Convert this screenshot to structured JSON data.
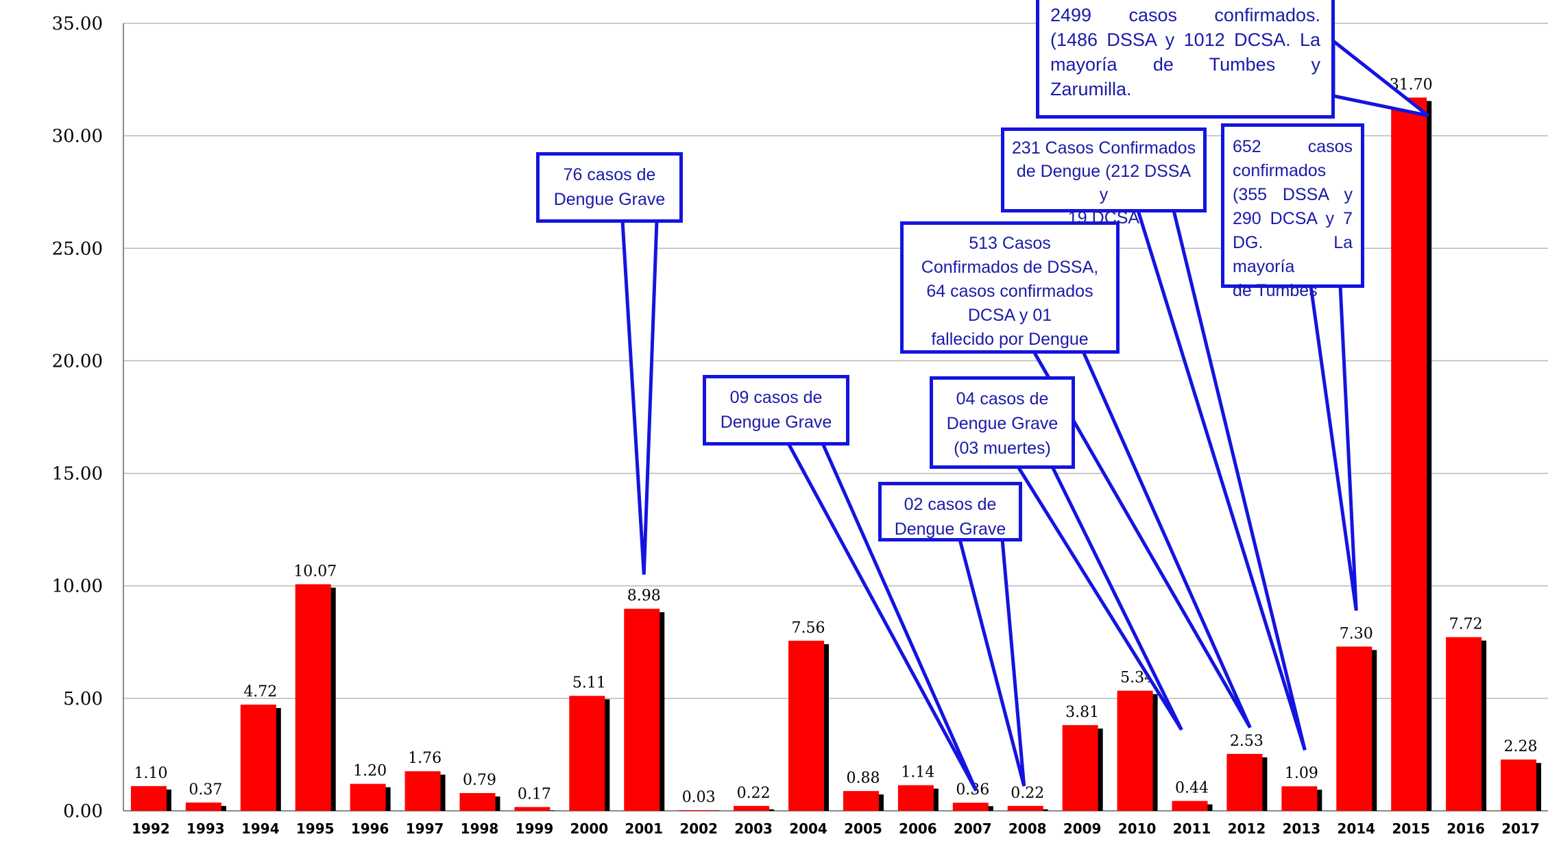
{
  "chart_data": {
    "type": "bar",
    "title": "",
    "xlabel": "",
    "ylabel": "",
    "ylim": [
      0,
      35
    ],
    "yticks": [
      "0.00",
      "5.00",
      "10.00",
      "15.00",
      "20.00",
      "25.00",
      "30.00",
      "35.00"
    ],
    "grid": true,
    "bar_color": "#ff0000",
    "shadow_color": "#000000",
    "callout_color": "#1a1aa8",
    "categories": [
      "1992",
      "1993",
      "1994",
      "1995",
      "1996",
      "1997",
      "1998",
      "1999",
      "2000",
      "2001",
      "2002",
      "2003",
      "2004",
      "2005",
      "2006",
      "2007",
      "2008",
      "2009",
      "2010",
      "2011",
      "2012",
      "2013",
      "2014",
      "2015",
      "2016",
      "2017"
    ],
    "values": [
      1.1,
      0.37,
      4.72,
      10.07,
      1.2,
      1.76,
      0.79,
      0.17,
      5.11,
      8.98,
      0.03,
      0.22,
      7.56,
      0.88,
      1.14,
      0.36,
      0.22,
      3.81,
      5.34,
      0.44,
      2.53,
      1.09,
      7.3,
      31.7,
      7.72,
      2.28
    ],
    "data_labels": [
      "1.10",
      "0.37",
      "4.72",
      "10.07",
      "1.20",
      "1.76",
      "0.79",
      "0.17",
      "5.11",
      "8.98",
      "0.03",
      "0.22",
      "7.56",
      "0.88",
      "1.14",
      "0.36",
      "0.22",
      "3.81",
      "5.34",
      "0.44",
      "2.53",
      "1.09",
      "7.30",
      "31.70",
      "7.72",
      "2.28"
    ],
    "annotations": [
      {
        "year": "2001",
        "lines": [
          "76 casos de",
          "Dengue Grave"
        ]
      },
      {
        "year": "2007",
        "lines": [
          "09 casos de",
          "Dengue Grave"
        ]
      },
      {
        "year": "2008",
        "lines": [
          "02 casos de",
          "Dengue Grave"
        ]
      },
      {
        "year": "2011",
        "lines": [
          "04 casos de",
          "Dengue Grave",
          "(03 muertes)"
        ]
      },
      {
        "year": "2012",
        "lines": [
          "513 Casos",
          "Confirmados de DSSA,",
          "64 casos confirmados",
          "DCSA y 01",
          "fallecido por Dengue"
        ]
      },
      {
        "year": "2013",
        "lines": [
          "231 Casos  Confirmados",
          "de Dengue (212 DSSA y",
          "19 DCSA"
        ]
      },
      {
        "year": "2014",
        "lines": [
          "652 casos",
          "confirmados",
          "(355 DSSA y",
          "290 DCSA y 7",
          "DG. La mayoría",
          "de Tumbes"
        ]
      },
      {
        "year": "2015",
        "lines": [
          "2499 casos confirmados.",
          "(1486 DSSA y 1012 DCSA. La",
          "mayoría de Tumbes y",
          "Zarumilla."
        ]
      }
    ]
  }
}
